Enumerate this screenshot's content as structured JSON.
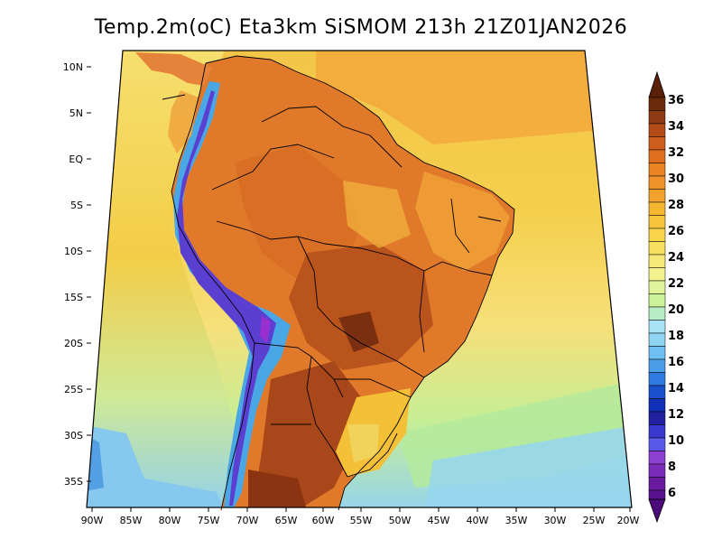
{
  "title": "Temp.2m(oC) Eta3km SiSMOM 213h 21Z01JAN2026",
  "map": {
    "lat_labels": [
      "10N",
      "5N",
      "EQ",
      "5S",
      "10S",
      "15S",
      "20S",
      "25S",
      "30S",
      "35S"
    ],
    "lon_labels": [
      "90W",
      "85W",
      "80W",
      "75W",
      "70W",
      "65W",
      "60W",
      "55W",
      "50W",
      "45W",
      "40W",
      "35W",
      "30W",
      "25W",
      "20W"
    ],
    "ocean_colors": {
      "north_atlantic": "#f2b43a",
      "equatorial_atlantic": "#f7d758",
      "south_atlantic_mid": "#f6e27a",
      "south_atlantic_cool": "#c8ee8e",
      "far_south": "#9fd8f2",
      "pacific_north": "#f7dc68",
      "pacific_mid": "#f4d04a",
      "pacific_south": "#bfe89b",
      "pacific_cold": "#8fd0ee"
    },
    "land_colors": {
      "amazon": "#e07a2a",
      "hot": "#a8471a",
      "very_hot": "#7a3010",
      "northeast": "#e88a2e",
      "south_brazil": "#f4c038",
      "andes_cold": "#5b3fd0",
      "andes_cool": "#4aa7e6"
    }
  },
  "colorbar": {
    "labels": [
      "36",
      "34",
      "32",
      "30",
      "28",
      "26",
      "24",
      "22",
      "20",
      "18",
      "16",
      "14",
      "12",
      "10",
      "8",
      "6"
    ],
    "colors": [
      "#6b2a0a",
      "#8e3a12",
      "#b44c1a",
      "#d8661f",
      "#f0922a",
      "#f5b731",
      "#f7d850",
      "#f5f08e",
      "#ccf39a",
      "#a7e3f5",
      "#6fbff0",
      "#2f7ae0",
      "#1030b8",
      "#2020a0",
      "#5a5ae8",
      "#8c3fd0",
      "#6a1aa0",
      "#4c0a78"
    ]
  }
}
